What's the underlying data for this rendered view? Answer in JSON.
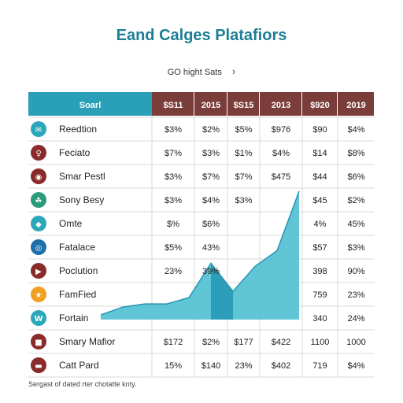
{
  "page": {
    "title": "Eand Calges Platafiors",
    "link_label": "GO hight Sats",
    "link_icon": "chevron-right-icon",
    "footer": "Sergast of dated rter chotatte knty."
  },
  "colors": {
    "header_teal": "#2a9fb8",
    "header_brown": "#7a3d3a",
    "area_light": "#4fc0d2",
    "area_dark": "#2496b4",
    "grid": "#d9d9d9"
  },
  "chart_data": {
    "type": "table",
    "title": "Eand Calges Platafiors",
    "columns": [
      "Soarl",
      "$S11",
      "2015",
      "$S15",
      "2013",
      "$920",
      "2019"
    ],
    "rows": [
      {
        "label": "Reedtion",
        "icon": "chat-icon",
        "icon_color": "#2aa7b9",
        "cells": [
          "$3%",
          "$2%",
          "$5%",
          "$976",
          "$90",
          "$4%"
        ]
      },
      {
        "label": "Feciato",
        "icon": "person-icon",
        "icon_color": "#8a2b2b",
        "cells": [
          "$7%",
          "$3%",
          "$1%",
          "$4%",
          "$14",
          "$8%"
        ]
      },
      {
        "label": "Smar Pestl",
        "icon": "pin-icon",
        "icon_color": "#8a2b2b",
        "cells": [
          "$3%",
          "$7%",
          "$7%",
          "$475",
          "$44",
          "$6%"
        ]
      },
      {
        "label": "Sony Besy",
        "icon": "leaf-icon",
        "icon_color": "#2a9c7a",
        "cells": [
          "$3%",
          "$4%",
          "$3%",
          "",
          "$45",
          "$2%"
        ]
      },
      {
        "label": "Omte",
        "icon": "diamond-icon",
        "icon_color": "#2aa7b9",
        "cells": [
          "$%",
          "$6%",
          "",
          "",
          "4%",
          "45%"
        ]
      },
      {
        "label": "Fatalace",
        "icon": "globe-icon",
        "icon_color": "#1f6fa8",
        "cells": [
          "$5%",
          "43%",
          "",
          "",
          "$57",
          "$3%"
        ]
      },
      {
        "label": "Poclution",
        "icon": "play-icon",
        "icon_color": "#8a2b2b",
        "cells": [
          "23%",
          "39%",
          "",
          "",
          "398",
          "90%"
        ]
      },
      {
        "label": "FamFied",
        "icon": "shield-icon",
        "icon_color": "#f0a020",
        "cells": [
          "",
          "",
          "",
          "",
          "759",
          "23%"
        ]
      },
      {
        "label": "Fortain",
        "icon": "w-icon",
        "icon_color": "#2aa7b9",
        "cells": [
          "",
          "",
          "",
          "",
          "340",
          "24%"
        ]
      },
      {
        "label": "Smary Mafior",
        "icon": "bookmark-icon",
        "icon_color": "#8a2b2b",
        "cells": [
          "$172",
          "$2%",
          "$177",
          "$422",
          "1100",
          "1000"
        ]
      },
      {
        "label": "Catt Pard",
        "icon": "card-icon",
        "icon_color": "#8a2b2b",
        "cells": [
          "15%",
          "$140",
          "23%",
          "$402",
          "719",
          "$4%"
        ]
      }
    ],
    "area_overlay": {
      "type": "area",
      "x": [
        0,
        1,
        2,
        3,
        4,
        5,
        6,
        7,
        8,
        9
      ],
      "y": [
        0.3,
        0.8,
        1.0,
        1.0,
        1.4,
        3.6,
        1.8,
        3.4,
        4.4,
        8.2
      ],
      "ylim": [
        0,
        9
      ]
    }
  }
}
